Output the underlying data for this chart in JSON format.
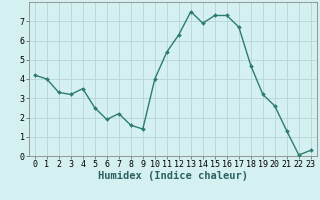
{
  "x": [
    0,
    1,
    2,
    3,
    4,
    5,
    6,
    7,
    8,
    9,
    10,
    11,
    12,
    13,
    14,
    15,
    16,
    17,
    18,
    19,
    20,
    21,
    22,
    23
  ],
  "y": [
    4.2,
    4.0,
    3.3,
    3.2,
    3.5,
    2.5,
    1.9,
    2.2,
    1.6,
    1.4,
    4.0,
    5.4,
    6.3,
    7.5,
    6.9,
    7.3,
    7.3,
    6.7,
    4.7,
    3.2,
    2.6,
    1.3,
    0.05,
    0.3
  ],
  "line_color": "#2d7d6e",
  "marker": "D",
  "marker_size": 2.0,
  "bg_color": "#d4f0f0",
  "grid_color": "#b8d4d4",
  "xlabel": "Humidex (Indice chaleur)",
  "xlim": [
    -0.5,
    23.5
  ],
  "ylim": [
    0,
    8
  ],
  "yticks": [
    0,
    1,
    2,
    3,
    4,
    5,
    6,
    7
  ],
  "xticks": [
    0,
    1,
    2,
    3,
    4,
    5,
    6,
    7,
    8,
    9,
    10,
    11,
    12,
    13,
    14,
    15,
    16,
    17,
    18,
    19,
    20,
    21,
    22,
    23
  ],
  "tick_fontsize": 6.0,
  "xlabel_fontsize": 7.5,
  "line_width": 1.0
}
